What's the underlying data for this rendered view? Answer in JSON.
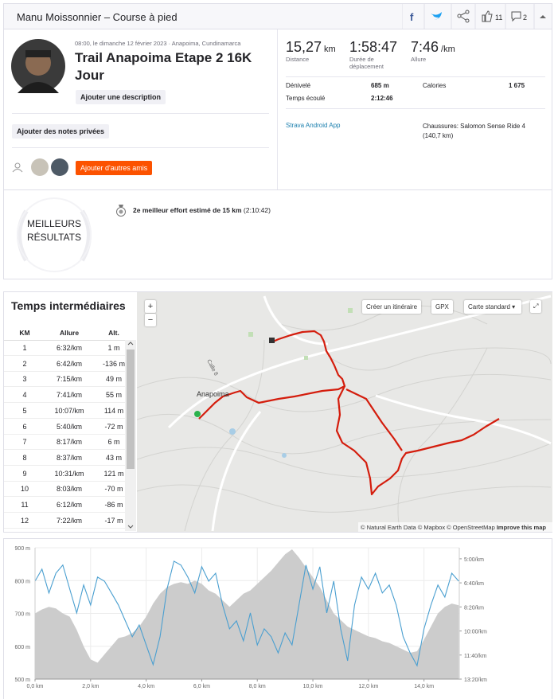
{
  "header": {
    "title": "Manu Moissonnier – Course à pied",
    "kudos": "11",
    "comments": "2"
  },
  "activity": {
    "datetime": "08:00, le dimanche 12 février 2023 · Anapoima, Cundinamarca",
    "title": "Trail Anapoima Etape 2 16K Jour",
    "add_description": "Ajouter une description",
    "private_notes": "Ajouter des notes privées",
    "add_friends": "Ajouter d'autres amis",
    "stats": [
      {
        "value": "15,27",
        "unit": "km",
        "label": "Distance"
      },
      {
        "value": "1:58:47",
        "label": "Durée de déplacement"
      },
      {
        "value": "7:46",
        "unit": "/km",
        "label": "Allure"
      }
    ],
    "details": [
      {
        "label": "Dénivelé",
        "value": "685 m"
      },
      {
        "label": "Calories",
        "value": "1 675"
      },
      {
        "label": "Temps écoulé",
        "value": "2:12:46"
      }
    ],
    "device": "Strava Android App",
    "shoes": "Chaussures: Salomon Sense Ride 4 (140,7 km)"
  },
  "achievements": {
    "title": "MEILLEURS RÉSULTATS",
    "items": [
      {
        "text": "2e meilleur effort estimé de 15 km",
        "time": "(2:10:42)"
      }
    ]
  },
  "splits": {
    "title": "Temps intermédiaires",
    "columns": [
      "KM",
      "Allure",
      "Alt."
    ],
    "rows": [
      [
        "1",
        "6:32/km",
        "1 m"
      ],
      [
        "2",
        "6:42/km",
        "-136 m"
      ],
      [
        "3",
        "7:15/km",
        "49 m"
      ],
      [
        "4",
        "7:41/km",
        "55 m"
      ],
      [
        "5",
        "10:07/km",
        "114 m"
      ],
      [
        "6",
        "5:40/km",
        "-72 m"
      ],
      [
        "7",
        "8:17/km",
        "6 m"
      ],
      [
        "8",
        "8:37/km",
        "43 m"
      ],
      [
        "9",
        "10:31/km",
        "121 m"
      ],
      [
        "10",
        "8:03/km",
        "-70 m"
      ],
      [
        "11",
        "6:12/km",
        "-86 m"
      ],
      [
        "12",
        "7:22/km",
        "-17 m"
      ]
    ]
  },
  "map": {
    "zoom_in": "+",
    "zoom_out": "−",
    "route": "Créer un itinéraire",
    "gpx": "GPX",
    "style": "Carte standard",
    "place": "Anapoima",
    "road": "Calle 8",
    "attribution": "© Natural Earth Data © Mapbox © OpenStreetMap",
    "improve": "Improve this map"
  },
  "chart_data": {
    "type": "line",
    "x": [
      0,
      0.25,
      0.5,
      0.75,
      1,
      1.25,
      1.5,
      1.75,
      2,
      2.25,
      2.5,
      2.75,
      3,
      3.25,
      3.5,
      3.75,
      4,
      4.25,
      4.5,
      4.75,
      5,
      5.25,
      5.5,
      5.75,
      6,
      6.25,
      6.5,
      6.75,
      7,
      7.25,
      7.5,
      7.75,
      8,
      8.25,
      8.5,
      8.75,
      9,
      9.25,
      9.5,
      9.75,
      10,
      10.25,
      10.5,
      10.75,
      11,
      11.25,
      11.5,
      11.75,
      12,
      12.25,
      12.5,
      12.75,
      13,
      13.25,
      13.5,
      13.75,
      14,
      14.25,
      14.5,
      14.75,
      15,
      15.25
    ],
    "series": [
      {
        "color": "#cccccc",
        "area": true,
        "values": [
          700,
          712,
          720,
          715,
          700,
          690,
          650,
          600,
          560,
          550,
          575,
          600,
          625,
          630,
          640,
          660,
          690,
          730,
          760,
          780,
          790,
          795,
          790,
          800,
          790,
          770,
          760,
          740,
          720,
          740,
          760,
          770,
          790,
          810,
          830,
          855,
          880,
          895,
          870,
          840,
          810,
          780,
          740,
          700,
          680,
          660,
          650,
          640,
          630,
          625,
          615,
          610,
          600,
          590,
          580,
          585,
          620,
          660,
          700,
          720,
          730,
          725
        ]
      },
      {
        "color": "#4a9fd0",
        "axis": "y2",
        "values": [
          393,
          343,
          442,
          360,
          326,
          426,
          525,
          409,
          492,
          376,
          393,
          442,
          492,
          558,
          624,
          575,
          658,
          740,
          624,
          426,
          310,
          326,
          376,
          442,
          333,
          393,
          360,
          492,
          591,
          558,
          641,
          525,
          658,
          591,
          624,
          691,
          608,
          658,
          492,
          326,
          426,
          333,
          525,
          393,
          591,
          724,
          492,
          376,
          426,
          360,
          442,
          409,
          492,
          624,
          691,
          744,
          591,
          492,
          409,
          459,
          360,
          393
        ]
      }
    ],
    "xlim": [
      0,
      15.27
    ],
    "xticks": [
      {
        "value": 0,
        "label": "0,0 km"
      },
      {
        "value": 2,
        "label": "2,0 km"
      },
      {
        "value": 4,
        "label": "4,0 km"
      },
      {
        "value": 6,
        "label": "6,0 km"
      },
      {
        "value": 8,
        "label": "8,0 km"
      },
      {
        "value": 10,
        "label": "10,0 km"
      },
      {
        "value": 12,
        "label": "12,0 km"
      },
      {
        "value": 14,
        "label": "14,0 km"
      }
    ],
    "ylim": [
      500,
      900
    ],
    "yticks": [
      {
        "value": 500,
        "label": "500 m"
      },
      {
        "value": 600,
        "label": "600 m"
      },
      {
        "value": 700,
        "label": "700 m"
      },
      {
        "value": 800,
        "label": "800 m"
      },
      {
        "value": 900,
        "label": "900 m"
      }
    ],
    "y2lim": [
      800,
      254
    ],
    "y2ticks": [
      {
        "value": 300,
        "label": "5:00/km"
      },
      {
        "value": 400,
        "label": "6:40/km"
      },
      {
        "value": 500,
        "label": "8:20/km"
      },
      {
        "value": 600,
        "label": "10:00/km"
      },
      {
        "value": 700,
        "label": "11:40/km"
      },
      {
        "value": 800,
        "label": "13:20/km"
      }
    ],
    "grid": true
  }
}
